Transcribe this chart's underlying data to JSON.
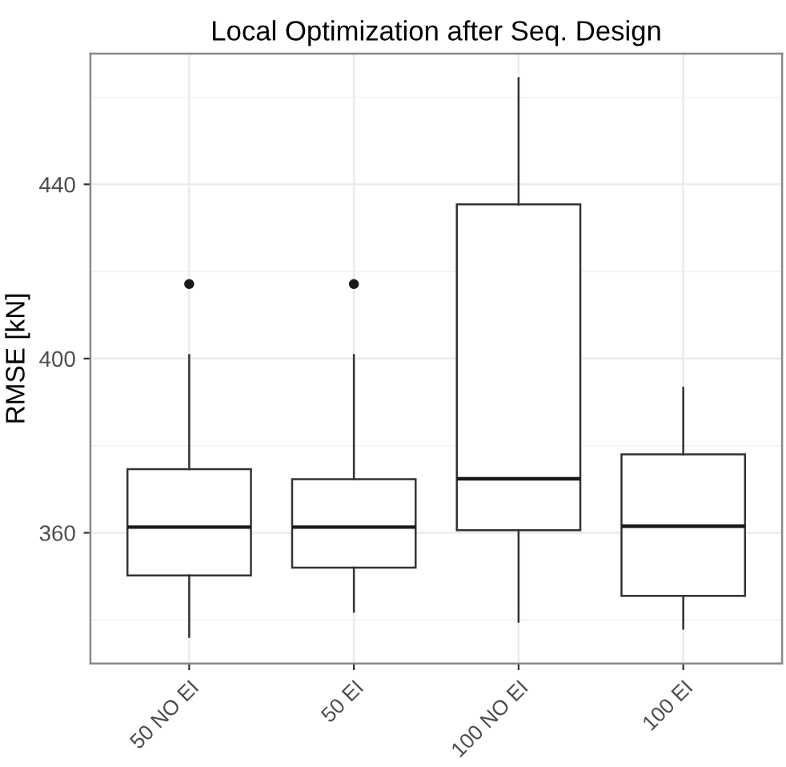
{
  "chart_data": {
    "type": "box",
    "title": "Local Optimization after Seq. Design",
    "ylabel": "RMSE [kN]",
    "categories": [
      "50 NO EI",
      "50 EI",
      "100 NO EI",
      "100 EI"
    ],
    "boxes": [
      {
        "low": 336.1,
        "q1": 350.2,
        "median": 361.3,
        "q3": 374.6,
        "high": 400.8,
        "outliers": [
          417.1
        ]
      },
      {
        "low": 341.9,
        "q1": 352.0,
        "median": 361.3,
        "q3": 372.3,
        "high": 400.8,
        "outliers": [
          417.1
        ]
      },
      {
        "low": 339.6,
        "q1": 360.6,
        "median": 372.4,
        "q3": 435.4,
        "high": 464.4
      },
      {
        "low": 338.0,
        "q1": 345.5,
        "median": 361.5,
        "q3": 378.0,
        "high": 393.3
      }
    ],
    "ylim": [
      330,
      470
    ],
    "yticks": [
      360,
      400,
      440
    ],
    "grid": true
  }
}
